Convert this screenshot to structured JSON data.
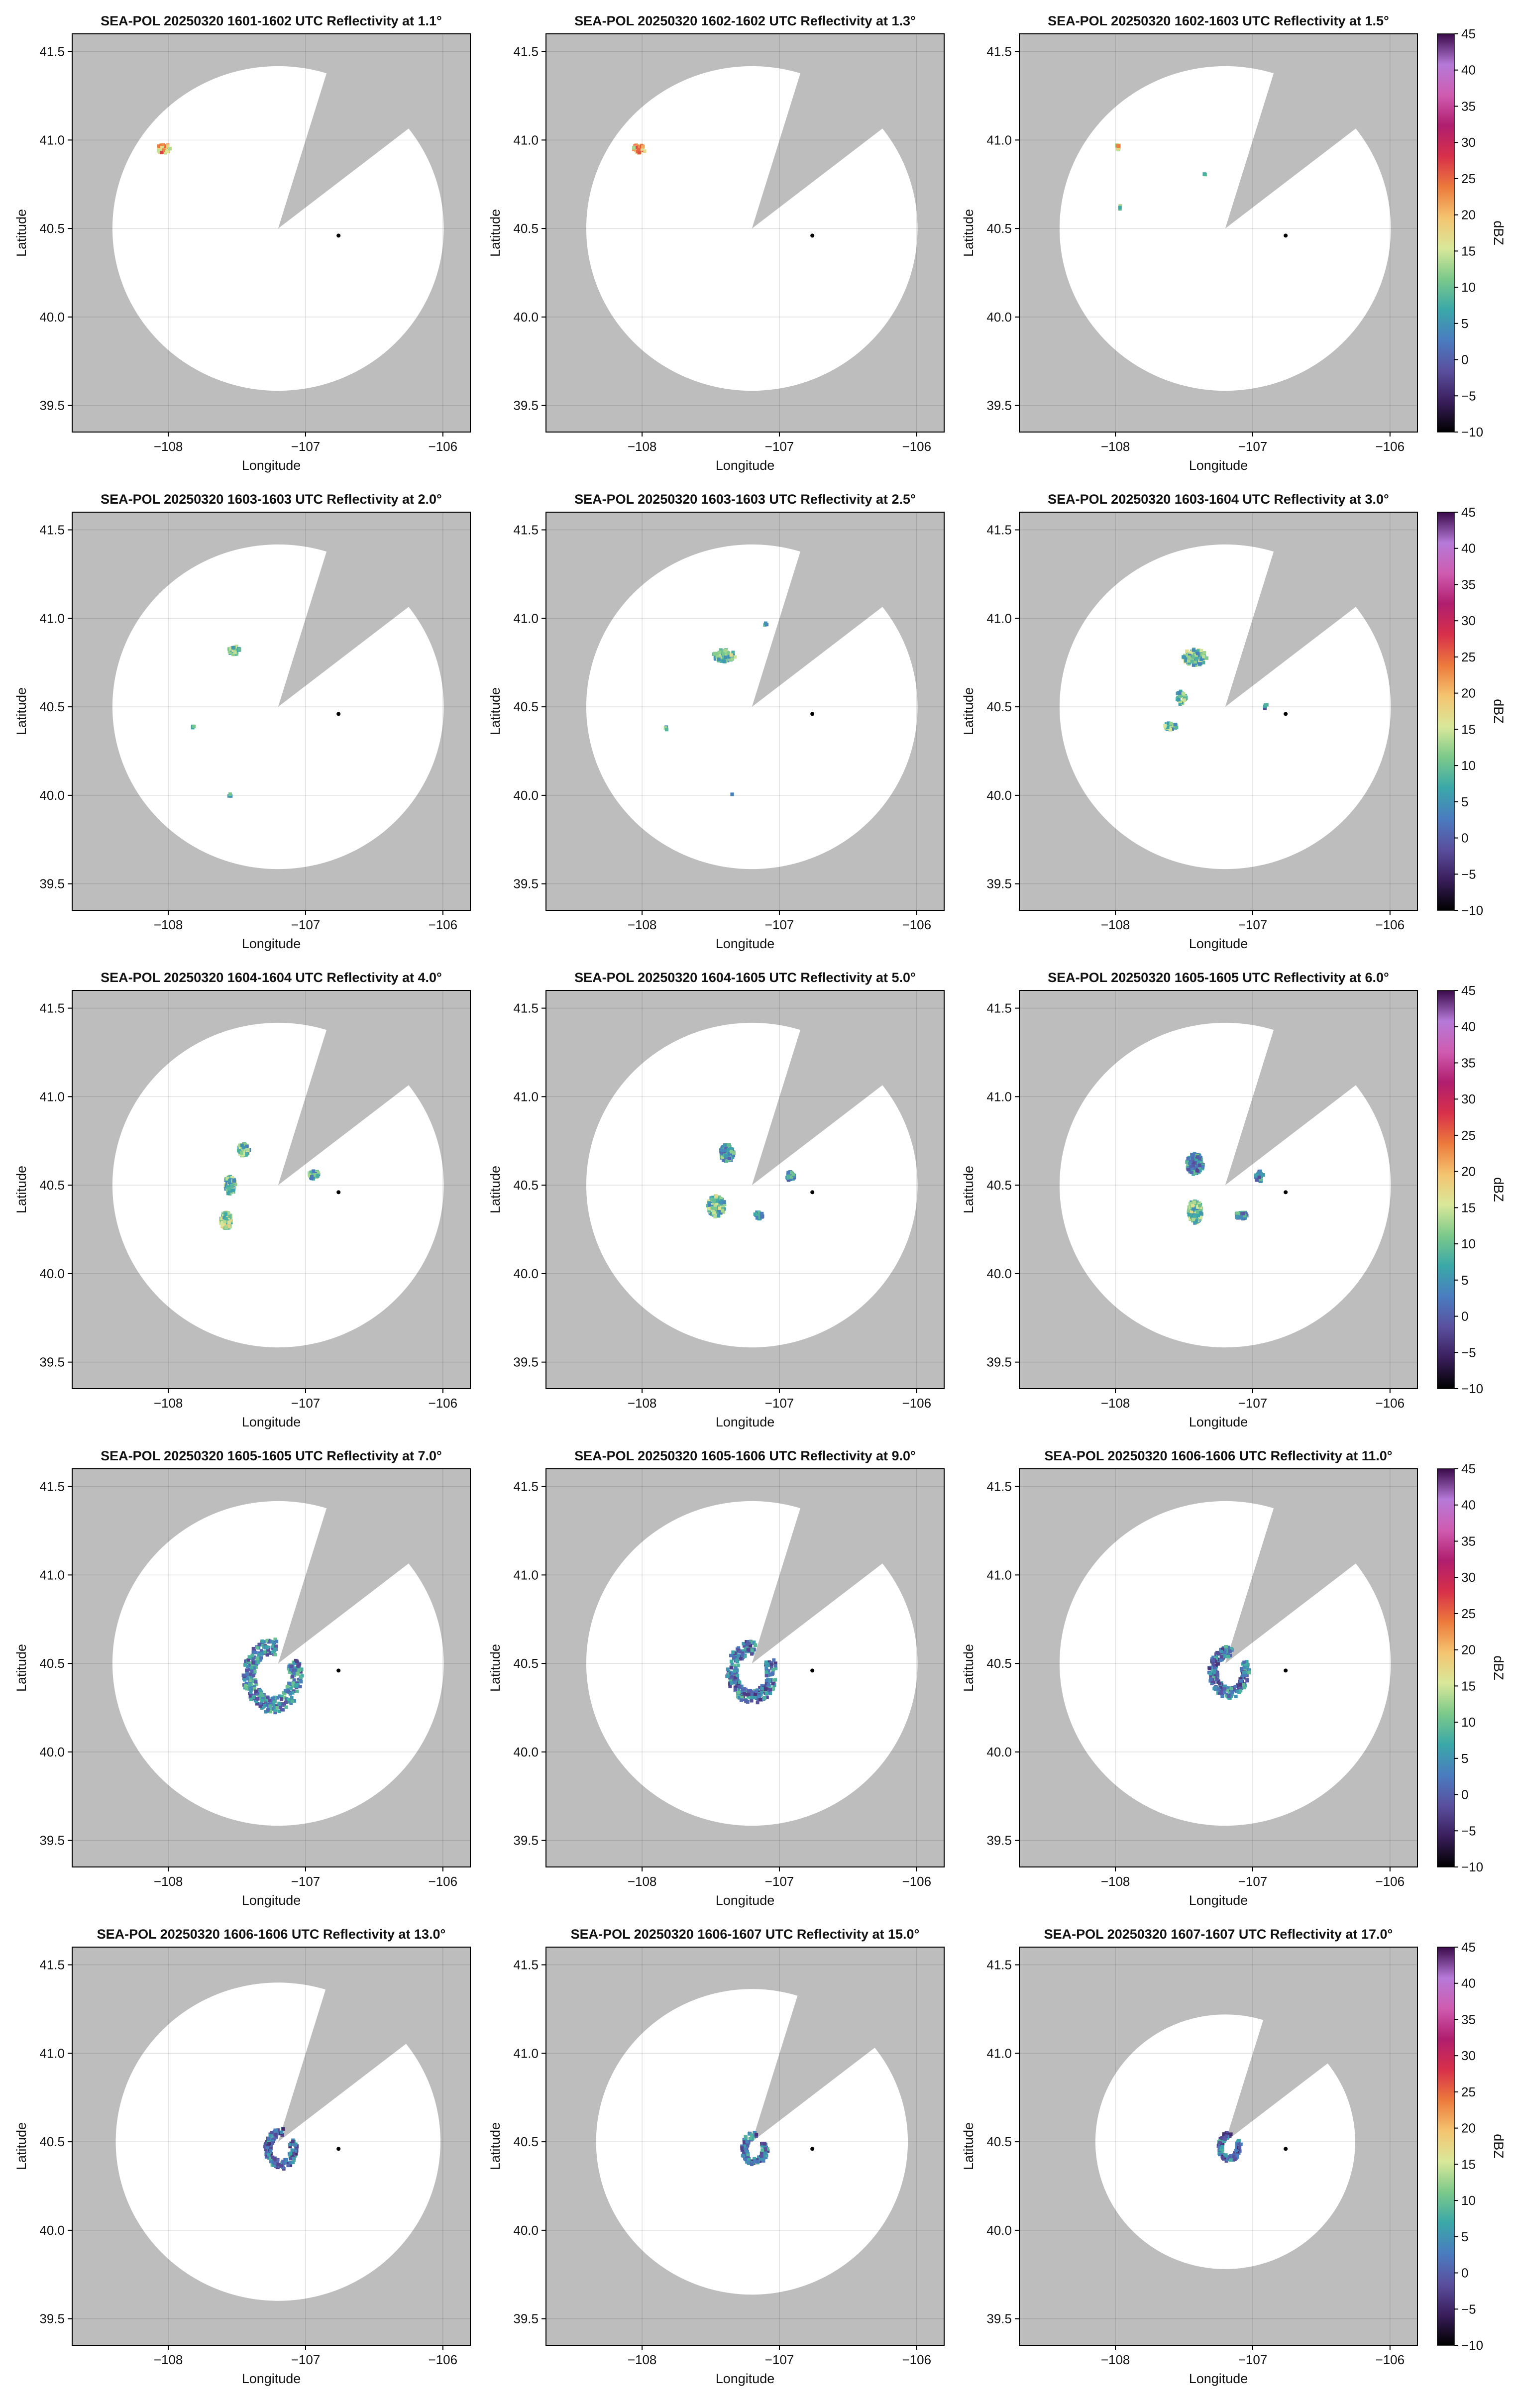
{
  "figure": {
    "cbar": {
      "ticks": [
        45,
        40,
        35,
        30,
        25,
        20,
        15,
        10,
        5,
        0,
        -5,
        -10
      ],
      "label": "dBZ"
    }
  },
  "chart_data": {
    "type": "heatmap",
    "description": "Grid of 15 PPI radar reflectivity maps",
    "xlabel": "Longitude",
    "ylabel": "Latitude",
    "xlim": [
      -108.7,
      -105.8
    ],
    "ylim": [
      39.35,
      41.6
    ],
    "xticks": [
      -108,
      -107,
      -106
    ],
    "xtick_labels": [
      "−108",
      "−107",
      "−106"
    ],
    "yticks": [
      39.5,
      40.0,
      40.5,
      41.0,
      41.5
    ],
    "ytick_labels": [
      "39.5",
      "40.0",
      "40.5",
      "41.0",
      "41.5"
    ],
    "grid": true,
    "radar_site": [
      -107.2,
      40.5
    ],
    "marker_point": [
      -106.76,
      40.46
    ],
    "blocked_sector_deg": [
      17,
      52
    ],
    "colorbar": {
      "label": "dBZ",
      "vmin": -10,
      "vmax": 45,
      "ticks": [
        45,
        40,
        35,
        30,
        25,
        20,
        15,
        10,
        5,
        0,
        -5,
        -10
      ],
      "colors": [
        "#000000",
        "#3a1e5c",
        "#5a4f9e",
        "#4a7cc0",
        "#3aa8a8",
        "#7cc98a",
        "#d9e89a",
        "#f4c470",
        "#ec7a3c",
        "#d8304a",
        "#b01e6e",
        "#cf5cb0",
        "#b57ad8",
        "#3a0a4a"
      ]
    },
    "panels": [
      {
        "title": "SEA-POL 20250320 1601-1602 UTC Reflectivity at 1.1°",
        "range_km": 102,
        "echoes": [
          {
            "lon": -108.03,
            "lat": 40.95,
            "w": 0.1,
            "h": 0.05,
            "dbz": 20,
            "n": 40
          }
        ]
      },
      {
        "title": "SEA-POL 20250320 1602-1602 UTC Reflectivity at 1.3°",
        "range_km": 102,
        "echoes": [
          {
            "lon": -108.02,
            "lat": 40.95,
            "w": 0.09,
            "h": 0.05,
            "dbz": 20,
            "n": 40
          }
        ]
      },
      {
        "title": "SEA-POL 20250320 1602-1603 UTC Reflectivity at 1.5°",
        "range_km": 102,
        "echoes": [
          {
            "lon": -107.98,
            "lat": 40.96,
            "w": 0.04,
            "h": 0.03,
            "dbz": 18,
            "n": 10
          },
          {
            "lon": -107.97,
            "lat": 40.62,
            "w": 0.02,
            "h": 0.02,
            "dbz": 12,
            "n": 3
          },
          {
            "lon": -107.35,
            "lat": 40.8,
            "w": 0.02,
            "h": 0.02,
            "dbz": 10,
            "n": 2
          }
        ]
      },
      {
        "title": "SEA-POL 20250320 1603-1603 UTC Reflectivity at 2.0°",
        "range_km": 102,
        "echoes": [
          {
            "lon": -107.52,
            "lat": 40.82,
            "w": 0.08,
            "h": 0.05,
            "dbz": 10,
            "n": 45
          },
          {
            "lon": -107.82,
            "lat": 40.39,
            "w": 0.02,
            "h": 0.02,
            "dbz": 10,
            "n": 3
          },
          {
            "lon": -107.55,
            "lat": 40.0,
            "w": 0.02,
            "h": 0.02,
            "dbz": 10,
            "n": 3
          }
        ]
      },
      {
        "title": "SEA-POL 20250320 1603-1603 UTC Reflectivity at 2.5°",
        "range_km": 102,
        "echoes": [
          {
            "lon": -107.4,
            "lat": 40.79,
            "w": 0.16,
            "h": 0.07,
            "dbz": 10,
            "n": 80
          },
          {
            "lon": -107.82,
            "lat": 40.38,
            "w": 0.02,
            "h": 0.02,
            "dbz": 8,
            "n": 3
          },
          {
            "lon": -107.35,
            "lat": 40.0,
            "w": 0.02,
            "h": 0.02,
            "dbz": 8,
            "n": 2
          },
          {
            "lon": -107.1,
            "lat": 40.97,
            "w": 0.02,
            "h": 0.02,
            "dbz": 8,
            "n": 3
          }
        ]
      },
      {
        "title": "SEA-POL 20250320 1603-1604 UTC Reflectivity at 3.0°",
        "range_km": 102,
        "echoes": [
          {
            "lon": -107.42,
            "lat": 40.78,
            "w": 0.18,
            "h": 0.09,
            "dbz": 10,
            "n": 110
          },
          {
            "lon": -107.52,
            "lat": 40.55,
            "w": 0.07,
            "h": 0.08,
            "dbz": 10,
            "n": 40
          },
          {
            "lon": -107.6,
            "lat": 40.39,
            "w": 0.1,
            "h": 0.04,
            "dbz": 10,
            "n": 35
          },
          {
            "lon": -106.9,
            "lat": 40.5,
            "w": 0.03,
            "h": 0.03,
            "dbz": 5,
            "n": 6
          }
        ]
      },
      {
        "title": "SEA-POL 20250320 1604-1604 UTC Reflectivity at 4.0°",
        "range_km": 102,
        "echoes": [
          {
            "lon": -107.45,
            "lat": 40.7,
            "w": 0.08,
            "h": 0.07,
            "dbz": 10,
            "n": 90
          },
          {
            "lon": -107.55,
            "lat": 40.5,
            "w": 0.08,
            "h": 0.1,
            "dbz": 10,
            "n": 90
          },
          {
            "lon": -107.58,
            "lat": 40.3,
            "w": 0.08,
            "h": 0.1,
            "dbz": 12,
            "n": 110
          },
          {
            "lon": -106.94,
            "lat": 40.56,
            "w": 0.07,
            "h": 0.05,
            "dbz": 8,
            "n": 40
          }
        ]
      },
      {
        "title": "SEA-POL 20250320 1604-1605 UTC Reflectivity at 5.0°",
        "range_km": 102,
        "echoes": [
          {
            "lon": -107.38,
            "lat": 40.68,
            "w": 0.1,
            "h": 0.1,
            "dbz": 6,
            "n": 120
          },
          {
            "lon": -107.46,
            "lat": 40.38,
            "w": 0.13,
            "h": 0.12,
            "dbz": 10,
            "n": 170
          },
          {
            "lon": -107.15,
            "lat": 40.33,
            "w": 0.06,
            "h": 0.04,
            "dbz": 4,
            "n": 30
          },
          {
            "lon": -106.92,
            "lat": 40.55,
            "w": 0.06,
            "h": 0.05,
            "dbz": 6,
            "n": 40
          }
        ]
      },
      {
        "title": "SEA-POL 20250320 1605-1605 UTC Reflectivity at 6.0°",
        "range_km": 102,
        "echoes": [
          {
            "lon": -107.42,
            "lat": 40.62,
            "w": 0.12,
            "h": 0.12,
            "dbz": 4,
            "n": 170
          },
          {
            "lon": -107.42,
            "lat": 40.35,
            "w": 0.1,
            "h": 0.13,
            "dbz": 10,
            "n": 170
          },
          {
            "lon": -107.08,
            "lat": 40.33,
            "w": 0.09,
            "h": 0.04,
            "dbz": 4,
            "n": 50
          },
          {
            "lon": -106.95,
            "lat": 40.55,
            "w": 0.06,
            "h": 0.06,
            "dbz": 4,
            "n": 40
          }
        ]
      },
      {
        "title": "SEA-POL 20250320 1605-1605 UTC Reflectivity at 7.0°",
        "range_km": 102,
        "ring": {
          "lon": -107.24,
          "lat": 40.43,
          "r": 0.2,
          "dbz": 4,
          "n": 420
        }
      },
      {
        "title": "SEA-POL 20250320 1605-1606 UTC Reflectivity at 9.0°",
        "range_km": 102,
        "ring": {
          "lon": -107.2,
          "lat": 40.45,
          "r": 0.17,
          "dbz": 3,
          "n": 340
        }
      },
      {
        "title": "SEA-POL 20250320 1606-1606 UTC Reflectivity at 11.0°",
        "range_km": 102,
        "ring": {
          "lon": -107.17,
          "lat": 40.45,
          "r": 0.14,
          "dbz": 3,
          "n": 260
        }
      },
      {
        "title": "SEA-POL 20250320 1606-1606 UTC Reflectivity at 13.0°",
        "range_km": 100,
        "ring": {
          "lon": -107.18,
          "lat": 40.46,
          "r": 0.11,
          "dbz": 2,
          "n": 190
        }
      },
      {
        "title": "SEA-POL 20250320 1606-1607 UTC Reflectivity at 15.0°",
        "range_km": 96,
        "ring": {
          "lon": -107.18,
          "lat": 40.46,
          "r": 0.09,
          "dbz": 2,
          "n": 160
        }
      },
      {
        "title": "SEA-POL 20250320 1607-1607 UTC Reflectivity at 17.0°",
        "range_km": 80,
        "ring": {
          "lon": -107.17,
          "lat": 40.47,
          "r": 0.08,
          "dbz": 2,
          "n": 140
        }
      }
    ]
  }
}
